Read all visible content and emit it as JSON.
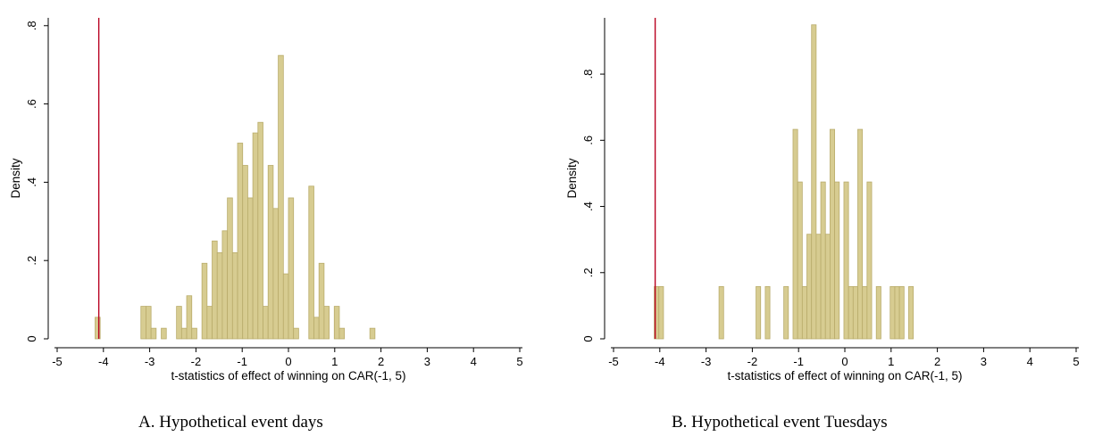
{
  "chart_data": [
    {
      "type": "bar",
      "caption": "A. Hypothetical event days",
      "xlabel": "t-statistics of effect of winning on CAR(-1, 5)",
      "ylabel": "Density",
      "xlim": [
        -5,
        5
      ],
      "ylim": [
        0,
        0.82
      ],
      "xticks": [
        "-5",
        "-4",
        "-3",
        "-2",
        "-1",
        "0",
        "1",
        "2",
        "3",
        "4",
        "5"
      ],
      "xtick_values": [
        -5,
        -4,
        -3,
        -2,
        -1,
        0,
        1,
        2,
        3,
        4,
        5
      ],
      "yticks": [
        "0",
        ".2",
        ".4",
        ".6",
        ".8"
      ],
      "ytick_values": [
        0,
        0.2,
        0.4,
        0.6,
        0.8
      ],
      "reference_line": -4.1,
      "bin_width": 0.11,
      "bin_start": -4.18,
      "values": [
        0.055,
        0,
        0,
        0,
        0,
        0,
        0,
        0,
        0,
        0.083,
        0.083,
        0.027,
        0,
        0.027,
        0,
        0,
        0.083,
        0.027,
        0.11,
        0.027,
        0,
        0.193,
        0.083,
        0.25,
        0.22,
        0.276,
        0.36,
        0.22,
        0.5,
        0.443,
        0.36,
        0.526,
        0.553,
        0.083,
        0.443,
        0.333,
        0.724,
        0.166,
        0.36,
        0.027,
        0,
        0,
        0.39,
        0.055,
        0.193,
        0.083,
        0,
        0.083,
        0.027,
        0,
        0,
        0,
        0,
        0,
        0.027
      ]
    },
    {
      "type": "bar",
      "caption": "B. Hypothetical event Tuesdays",
      "xlabel": "t-statistics of effect of winning on CAR(-1, 5)",
      "ylabel": "Density",
      "xlim": [
        -5,
        5
      ],
      "ylim": [
        0,
        0.97
      ],
      "xticks": [
        "-5",
        "-4",
        "-3",
        "-2",
        "-1",
        "0",
        "1",
        "2",
        "3",
        "4",
        "5"
      ],
      "xtick_values": [
        -5,
        -4,
        -3,
        -2,
        -1,
        0,
        1,
        2,
        3,
        4,
        5
      ],
      "yticks": [
        "0",
        ".2",
        ".4",
        ".6",
        ".8"
      ],
      "ytick_values": [
        0,
        0.2,
        0.4,
        0.6,
        0.8
      ],
      "reference_line": -4.1,
      "bin_width": 0.1,
      "bin_start": -4.12,
      "values": [
        0.158,
        0.158,
        0,
        0,
        0,
        0,
        0,
        0,
        0,
        0,
        0,
        0,
        0,
        0,
        0.158,
        0,
        0,
        0,
        0,
        0,
        0,
        0,
        0.158,
        0,
        0.158,
        0,
        0,
        0,
        0.158,
        0,
        0.633,
        0.474,
        0.158,
        0.316,
        0.949,
        0.316,
        0.474,
        0.316,
        0.633,
        0.474,
        0,
        0.474,
        0.158,
        0.158,
        0.633,
        0.158,
        0.474,
        0,
        0.158,
        0,
        0,
        0.158,
        0.158,
        0.158,
        0,
        0.158
      ]
    }
  ]
}
